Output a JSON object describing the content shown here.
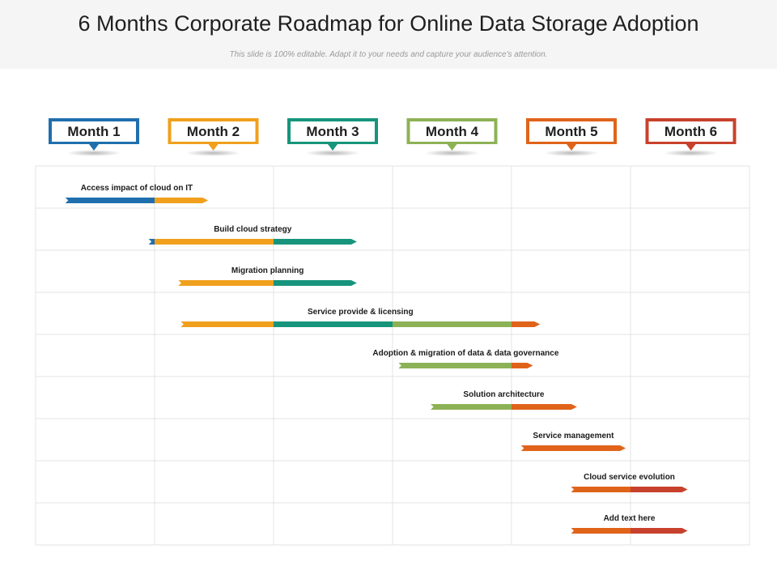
{
  "header": {
    "title": "6 Months Corporate Roadmap for Online Data Storage Adoption",
    "subtitle": "This slide is 100% editable. Adapt it to your needs and capture your audience's attention."
  },
  "chart_data": {
    "type": "gantt",
    "months": [
      {
        "label": "Month 1",
        "color": "#1f6fae"
      },
      {
        "label": "Month 2",
        "color": "#f0a01c"
      },
      {
        "label": "Month 3",
        "color": "#17957c"
      },
      {
        "label": "Month 4",
        "color": "#8db256"
      },
      {
        "label": "Month 5",
        "color": "#e0631a"
      },
      {
        "label": "Month 6",
        "color": "#c8412c"
      }
    ],
    "tasks": [
      {
        "label": "Access impact of cloud on IT",
        "start": 0.25,
        "end": 1.45
      },
      {
        "label": "Build cloud strategy",
        "start": 0.95,
        "end": 2.7
      },
      {
        "label": "Migration planning",
        "start": 1.2,
        "end": 2.7
      },
      {
        "label": "Service provide & licensing",
        "start": 1.22,
        "end": 4.24
      },
      {
        "label": "Adoption & migration of data & data governance",
        "start": 3.05,
        "end": 4.18
      },
      {
        "label": "Solution architecture",
        "start": 3.32,
        "end": 4.55
      },
      {
        "label": "Service management",
        "start": 4.08,
        "end": 4.96
      },
      {
        "label": "Cloud service evolution",
        "start": 4.5,
        "end": 5.48
      },
      {
        "label": "Add text here",
        "start": 4.5,
        "end": 5.48
      }
    ]
  }
}
